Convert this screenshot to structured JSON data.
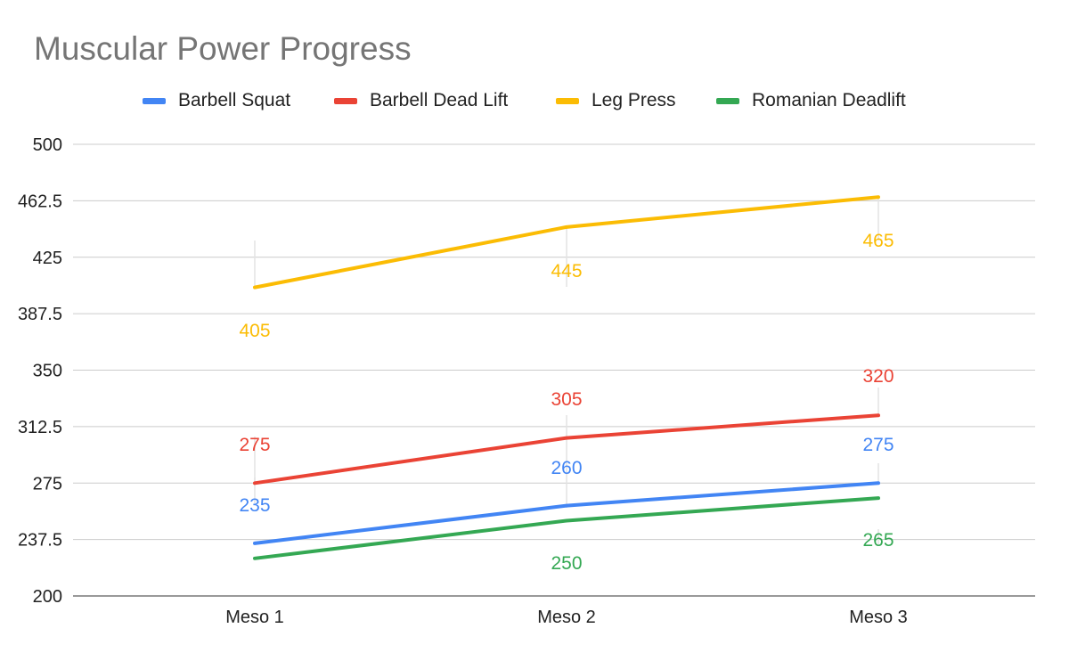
{
  "chart_data": {
    "type": "line",
    "title": "Muscular Power Progress",
    "categories": [
      "Meso 1",
      "Meso 2",
      "Meso 3"
    ],
    "ylim": [
      200,
      500
    ],
    "yticks": [
      "200",
      "237.5",
      "275",
      "312.5",
      "350",
      "387.5",
      "425",
      "462.5",
      "500"
    ],
    "grid": true,
    "legend_position": "top",
    "series": [
      {
        "name": "Barbell Squat",
        "color": "#4285F4",
        "values": [
          235,
          260,
          275
        ]
      },
      {
        "name": "Barbell Dead Lift",
        "color": "#EA4335",
        "values": [
          275,
          305,
          320
        ]
      },
      {
        "name": "Leg Press",
        "color": "#FBBC04",
        "values": [
          405,
          445,
          465
        ]
      },
      {
        "name": "Romanian Deadlift",
        "color": "#34A853",
        "values": [
          225,
          250,
          265
        ]
      }
    ],
    "data_labels": [
      [
        "235",
        "260",
        "275"
      ],
      [
        "275",
        "305",
        "320"
      ],
      [
        "405",
        "445",
        "465"
      ],
      [
        "",
        "250",
        "265"
      ]
    ]
  }
}
